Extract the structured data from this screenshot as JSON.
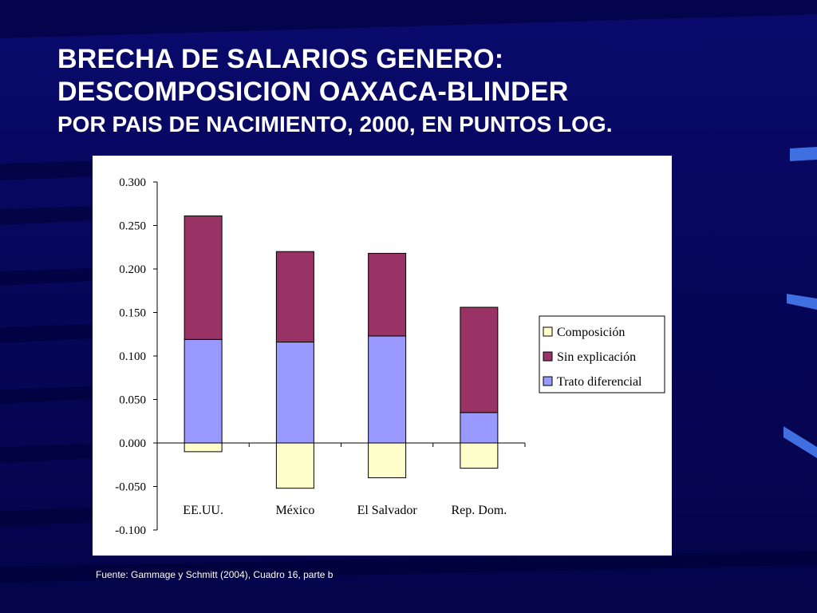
{
  "slide": {
    "title_line1": "BRECHA DE SALARIOS GENERO:",
    "title_line2": "DESCOMPOSICION OAXACA-BLINDER",
    "subtitle": "POR PAIS DE NACIMIENTO, 2000, EN PUNTOS LOG.",
    "source": "Fuente: Gammage y Schmitt (2004), Cuadro 16, parte b"
  },
  "colors": {
    "composicion": "#ffffcc",
    "sin_explicacion": "#993366",
    "trato_diferencial": "#9999ff",
    "background": "#06065a"
  },
  "chart_data": {
    "type": "bar",
    "stacked": true,
    "categories": [
      "EE.UU.",
      "México",
      "El Salvador",
      "Rep. Dom."
    ],
    "series": [
      {
        "name": "Composición",
        "color": "#ffffcc",
        "values": [
          -0.01,
          -0.052,
          -0.04,
          -0.029
        ]
      },
      {
        "name": "Sin explicación",
        "color": "#993366",
        "values": [
          0.142,
          0.104,
          0.095,
          0.121
        ]
      },
      {
        "name": "Trato diferencial",
        "color": "#9999ff",
        "values": [
          0.119,
          0.116,
          0.123,
          0.035
        ]
      }
    ],
    "ylim": [
      -0.1,
      0.3
    ],
    "yticks": [
      "0.300",
      "0.250",
      "0.200",
      "0.150",
      "0.100",
      "0.050",
      "0.000",
      "-0.050",
      "-0.100"
    ],
    "ytick_values": [
      0.3,
      0.25,
      0.2,
      0.15,
      0.1,
      0.05,
      0.0,
      -0.05,
      -0.1
    ],
    "legend": [
      "Composición",
      "Sin explicación",
      "Trato diferencial"
    ],
    "legend_position": "right",
    "grid": false
  }
}
